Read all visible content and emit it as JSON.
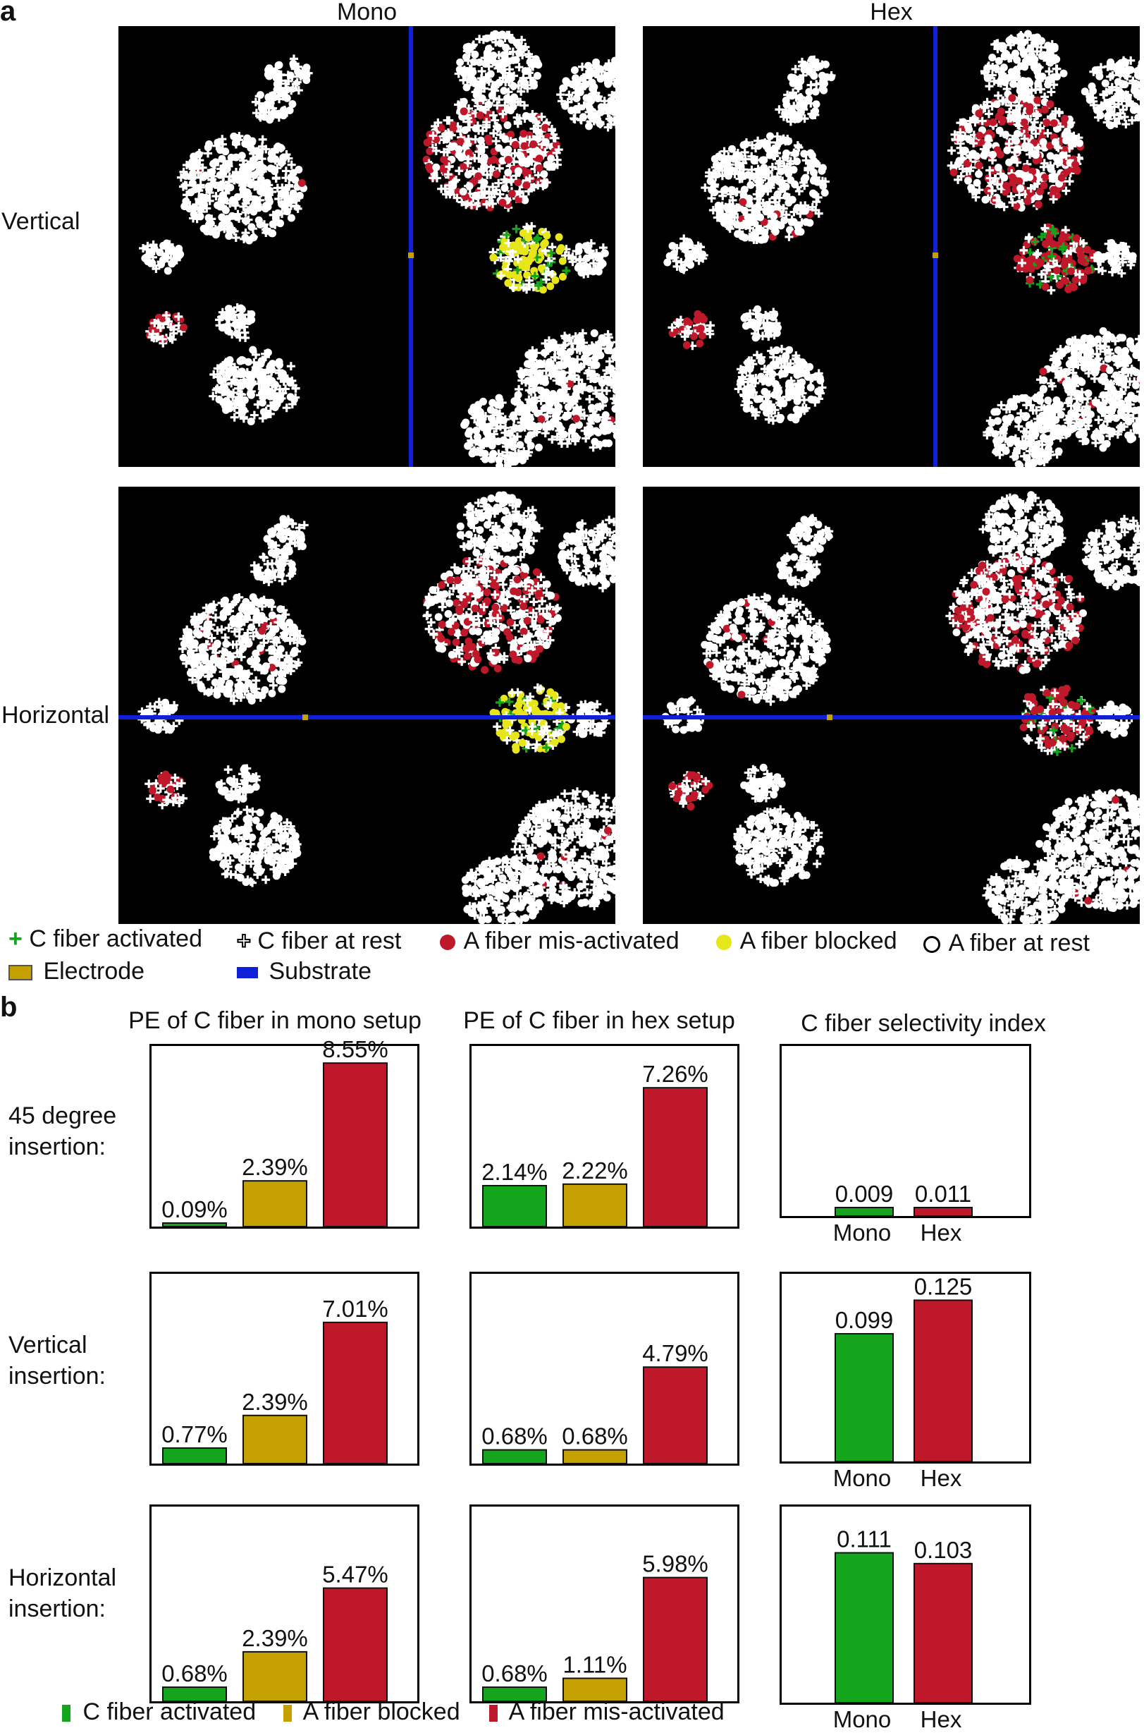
{
  "panel_a": {
    "letter": "a",
    "columns": [
      "Mono",
      "Hex"
    ],
    "rows": [
      "Vertical",
      "Horizontal"
    ],
    "legend": {
      "c_activated": "C fiber activated",
      "c_rest": "C fiber at rest",
      "a_misactivated": "A fiber mis-activated",
      "a_blocked": "A fiber blocked",
      "a_rest": "A fiber at rest",
      "electrode": "Electrode",
      "substrate": "Substrate"
    }
  },
  "panel_b": {
    "letter": "b",
    "column_titles": [
      "PE of C fiber in mono setup",
      "PE of C fiber in hex setup",
      "C fiber selectivity index"
    ],
    "row_labels": [
      "45 degree insertion:",
      "Vertical insertion:",
      "Horizontal insertion:"
    ],
    "legend": [
      "C fiber activated",
      "A fiber blocked",
      "A fiber mis-activated"
    ]
  },
  "colors": {
    "green": "#15a51d",
    "gold": "#c4a000",
    "red": "#c0182b",
    "blue": "#1020d8",
    "yellow": "#e6e61a",
    "black": "#000000"
  },
  "chart_data": [
    {
      "type": "bar",
      "title": "PE of C fiber in mono setup",
      "row": "45 degree insertion:",
      "categories": [
        "C fiber activated",
        "A fiber blocked",
        "A fiber mis-activated"
      ],
      "values": [
        0.09,
        2.39,
        8.55
      ],
      "labels": [
        "0.09%",
        "2.39%",
        "8.55%"
      ]
    },
    {
      "type": "bar",
      "title": "PE of C fiber in hex setup",
      "row": "45 degree insertion:",
      "categories": [
        "C fiber activated",
        "A fiber blocked",
        "A fiber mis-activated"
      ],
      "values": [
        2.14,
        2.22,
        7.26
      ],
      "labels": [
        "2.14%",
        "2.22%",
        "7.26%"
      ]
    },
    {
      "type": "bar",
      "title": "C fiber selectivity index",
      "row": "45 degree insertion:",
      "categories": [
        "Mono",
        "Hex"
      ],
      "values": [
        0.009,
        0.011
      ],
      "labels": [
        "0.009",
        "0.011"
      ]
    },
    {
      "type": "bar",
      "title": "PE of C fiber in mono setup",
      "row": "Vertical insertion:",
      "categories": [
        "C fiber activated",
        "A fiber blocked",
        "A fiber mis-activated"
      ],
      "values": [
        0.77,
        2.39,
        7.01
      ],
      "labels": [
        "0.77%",
        "2.39%",
        "7.01%"
      ]
    },
    {
      "type": "bar",
      "title": "PE of C fiber in hex setup",
      "row": "Vertical insertion:",
      "categories": [
        "C fiber activated",
        "A fiber blocked",
        "A fiber mis-activated"
      ],
      "values": [
        0.68,
        0.68,
        4.79
      ],
      "labels": [
        "0.68%",
        "0.68%",
        "4.79%"
      ]
    },
    {
      "type": "bar",
      "title": "C fiber selectivity index",
      "row": "Vertical insertion:",
      "categories": [
        "Mono",
        "Hex"
      ],
      "values": [
        0.099,
        0.125
      ],
      "labels": [
        "0.099",
        "0.125"
      ]
    },
    {
      "type": "bar",
      "title": "PE of C fiber in mono setup",
      "row": "Horizontal insertion:",
      "categories": [
        "C fiber activated",
        "A fiber blocked",
        "A fiber mis-activated"
      ],
      "values": [
        0.68,
        2.39,
        5.47
      ],
      "labels": [
        "0.68%",
        "2.39%",
        "5.47%"
      ]
    },
    {
      "type": "bar",
      "title": "PE of C fiber in hex setup",
      "row": "Horizontal insertion:",
      "categories": [
        "C fiber activated",
        "A fiber blocked",
        "A fiber mis-activated"
      ],
      "values": [
        0.68,
        1.11,
        5.98
      ],
      "labels": [
        "0.68%",
        "1.11%",
        "5.98%"
      ]
    },
    {
      "type": "bar",
      "title": "C fiber selectivity index",
      "row": "Horizontal insertion:",
      "categories": [
        "Mono",
        "Hex"
      ],
      "values": [
        0.111,
        0.103
      ],
      "labels": [
        "0.111",
        "0.103"
      ]
    }
  ]
}
